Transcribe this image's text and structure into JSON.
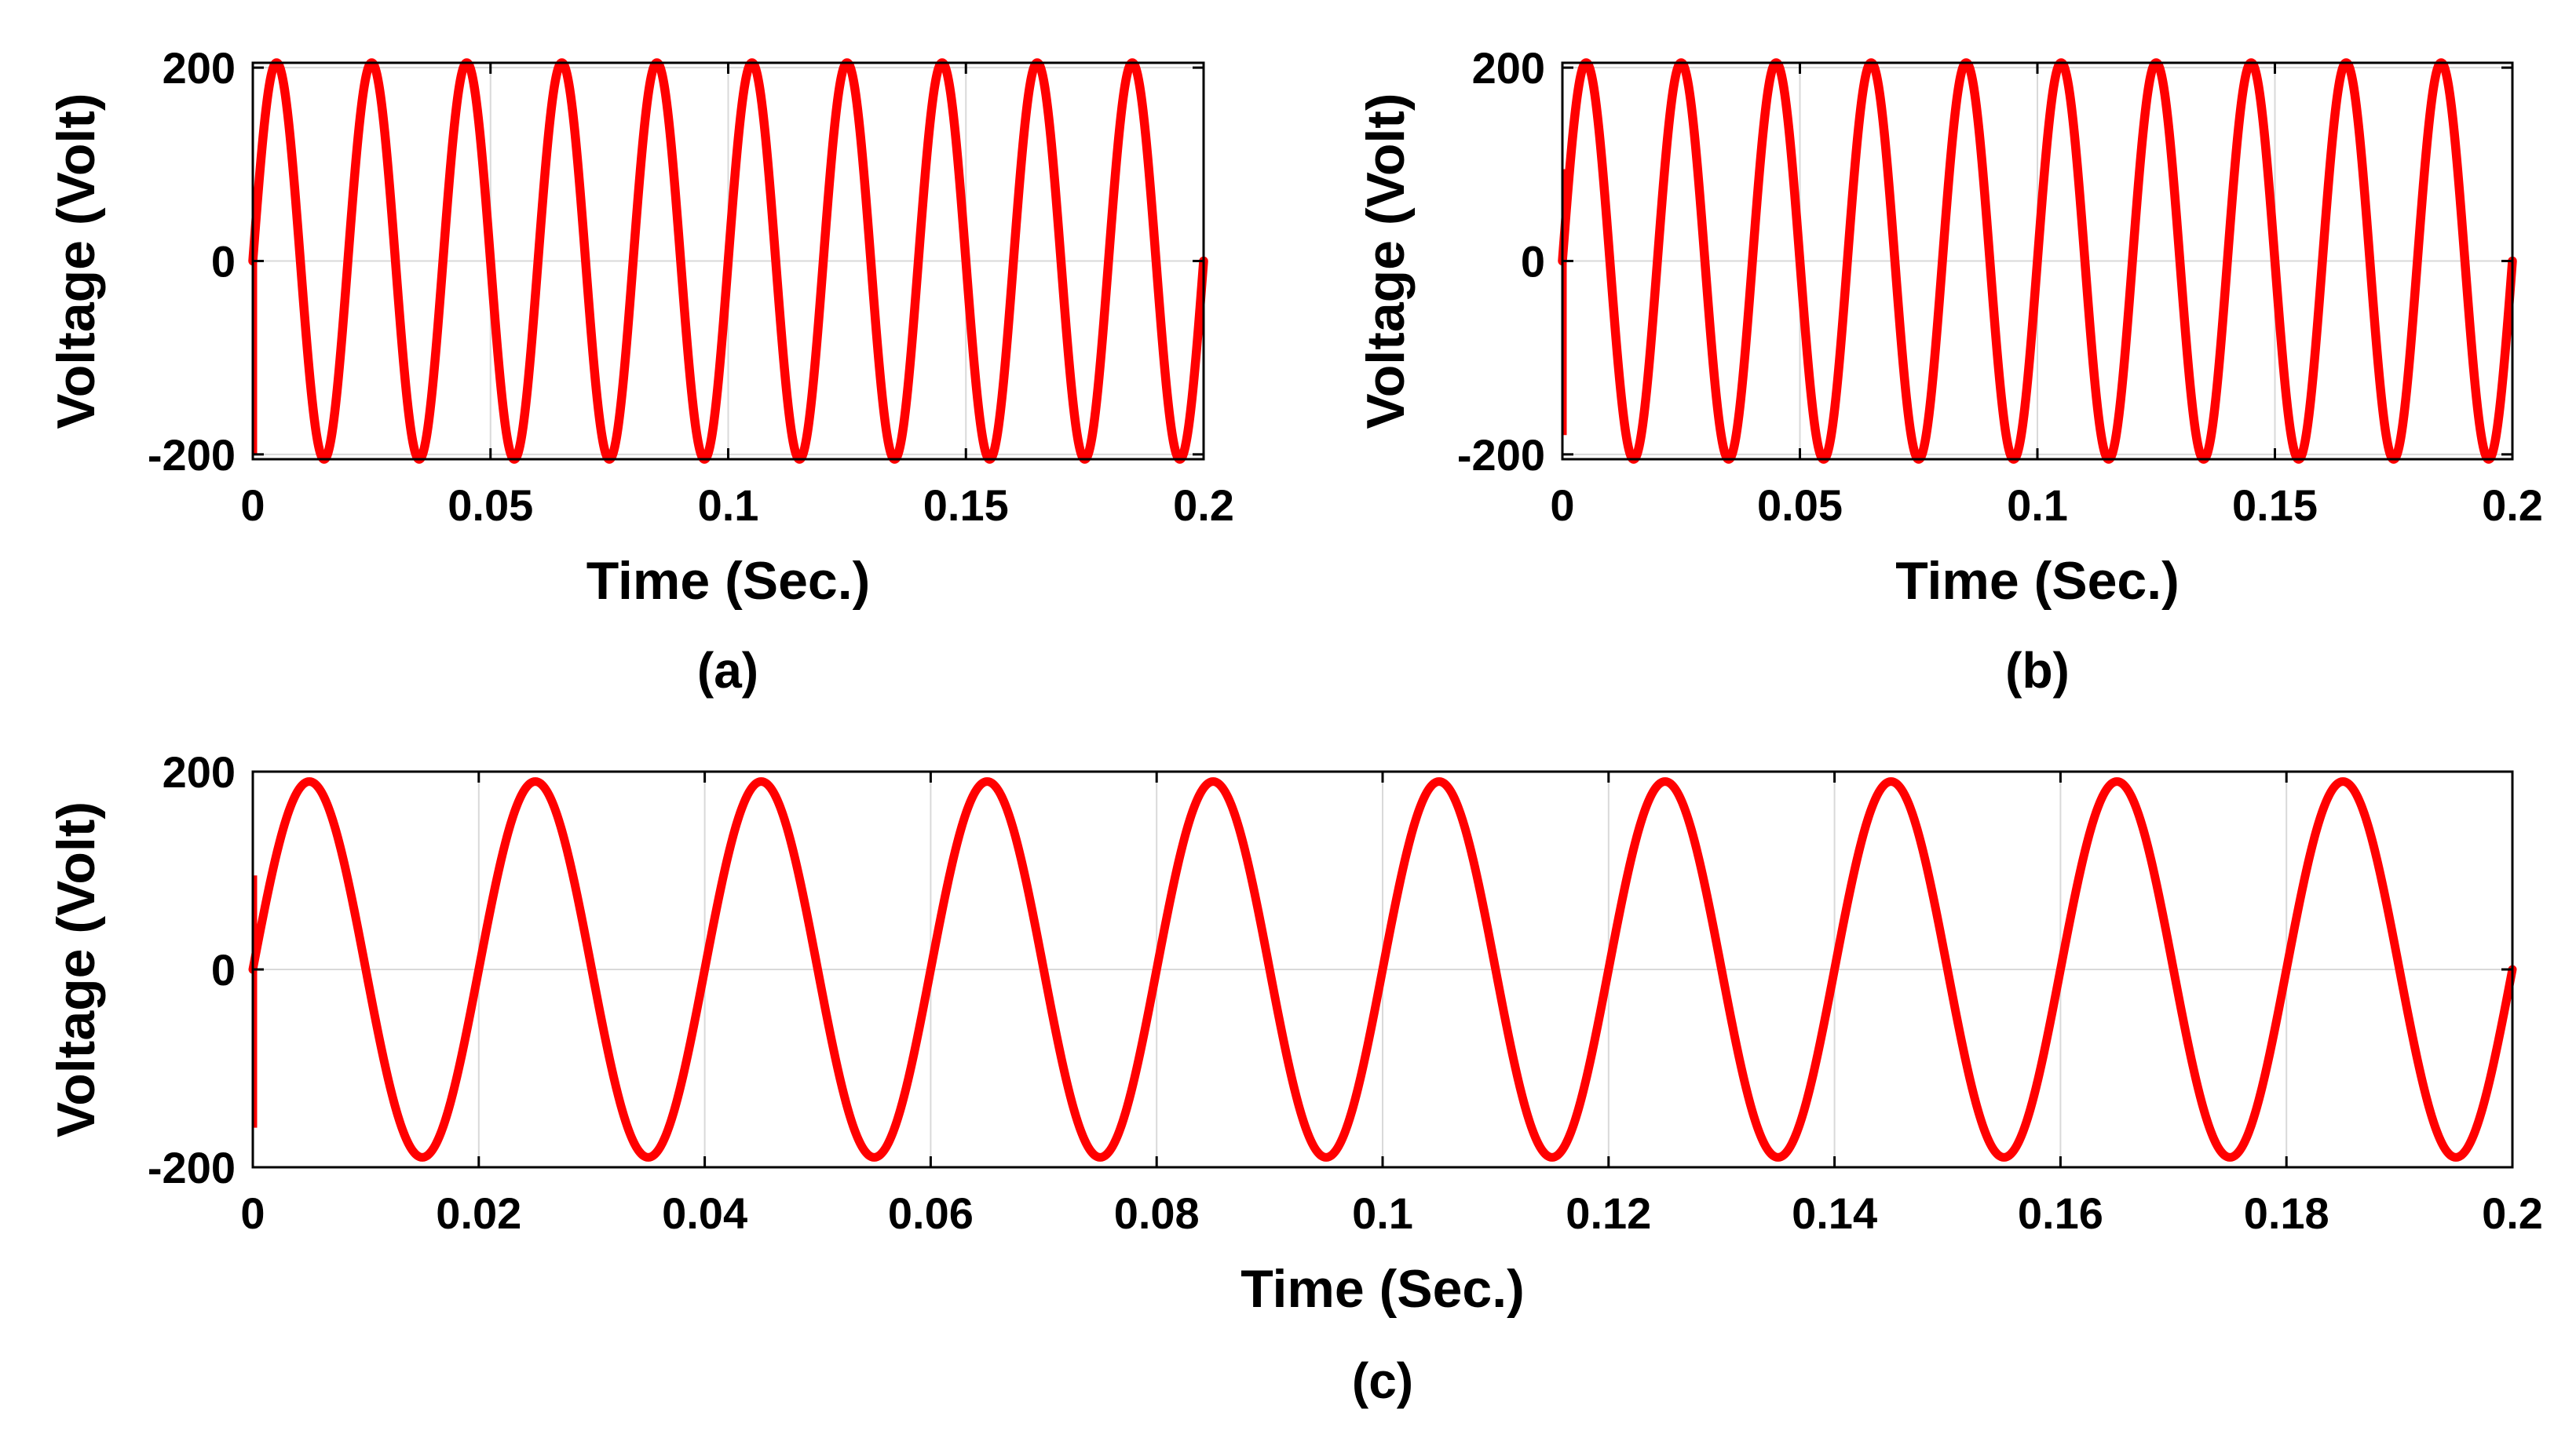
{
  "colors": {
    "wave": "#ff0000",
    "axis": "#000000",
    "grid": "#d9d9d9",
    "background": "#ffffff"
  },
  "chart_data": [
    {
      "id": "a",
      "type": "line",
      "caption": "(a)",
      "xlabel": "Time (Sec.)",
      "ylabel": "Voltage (Volt)",
      "xlim": [
        0,
        0.2
      ],
      "ylim": [
        -205,
        205
      ],
      "xticks": [
        0,
        0.05,
        0.1,
        0.15,
        0.2
      ],
      "xtick_labels": [
        "0",
        "0.05",
        "0.1",
        "0.15",
        "0.2"
      ],
      "yticks": [
        -200,
        0,
        200
      ],
      "ytick_labels": [
        "-200",
        "0",
        "200"
      ],
      "grid": true,
      "series": [
        {
          "name": "Voltage",
          "amplitude": 205,
          "frequency_hz": 50,
          "phase_deg": 0,
          "ripple": 7,
          "startup_transient": [
            -200,
            75
          ]
        }
      ]
    },
    {
      "id": "b",
      "type": "line",
      "caption": "(b)",
      "xlabel": "Time (Sec.)",
      "ylabel": "Voltage (Volt)",
      "xlim": [
        0,
        0.2
      ],
      "ylim": [
        -205,
        205
      ],
      "xticks": [
        0,
        0.05,
        0.1,
        0.15,
        0.2
      ],
      "xtick_labels": [
        "0",
        "0.05",
        "0.1",
        "0.15",
        "0.2"
      ],
      "yticks": [
        -200,
        0,
        200
      ],
      "ytick_labels": [
        "-200",
        "0",
        "200"
      ],
      "grid": true,
      "series": [
        {
          "name": "Voltage",
          "amplitude": 205,
          "frequency_hz": 50,
          "phase_deg": 0,
          "ripple": 7,
          "startup_transient": [
            -180,
            95
          ]
        }
      ]
    },
    {
      "id": "c",
      "type": "line",
      "caption": "(c)",
      "xlabel": "Time (Sec.)",
      "ylabel": "Voltage (Volt)",
      "xlim": [
        0,
        0.2
      ],
      "ylim": [
        -200,
        200
      ],
      "xticks": [
        0,
        0.02,
        0.04,
        0.06,
        0.08,
        0.1,
        0.12,
        0.14,
        0.16,
        0.18,
        0.2
      ],
      "xtick_labels": [
        "0",
        "0.02",
        "0.04",
        "0.06",
        "0.08",
        "0.1",
        "0.12",
        "0.14",
        "0.16",
        "0.18",
        "0.2"
      ],
      "yticks": [
        -200,
        0,
        200
      ],
      "ytick_labels": [
        "-200",
        "0",
        "200"
      ],
      "grid": true,
      "series": [
        {
          "name": "Voltage",
          "amplitude": 190,
          "frequency_hz": 50,
          "phase_deg": 0,
          "ripple": 6,
          "startup_transient": [
            -160,
            95
          ]
        }
      ]
    }
  ]
}
